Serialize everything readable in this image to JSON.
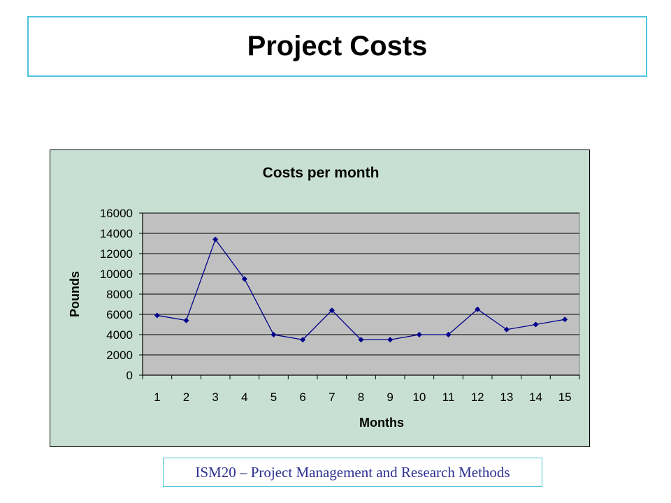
{
  "slide": {
    "title": "Project Costs",
    "footer": "ISM20 – Project Management and Research Methods"
  },
  "colors": {
    "title_border": "#4cc3d9",
    "chart_background": "#c8e0d4",
    "plot_background": "#c0c0c0",
    "series_color": "#00008b",
    "footer_text": "#2e3192"
  },
  "chart_data": {
    "type": "line",
    "title": "Costs per month",
    "xlabel": "Months",
    "ylabel": "Pounds",
    "categories": [
      "1",
      "2",
      "3",
      "4",
      "5",
      "6",
      "7",
      "8",
      "9",
      "10",
      "11",
      "12",
      "13",
      "14",
      "15"
    ],
    "series": [
      {
        "values": [
          5900,
          5400,
          13400,
          9500,
          4000,
          3500,
          6400,
          3500,
          3500,
          4000,
          4000,
          6500,
          4500,
          5000,
          5500
        ]
      }
    ],
    "ylim": [
      0,
      16000
    ],
    "yticks": [
      0,
      2000,
      4000,
      6000,
      8000,
      10000,
      12000,
      14000,
      16000
    ],
    "grid": true,
    "legend": "none",
    "marker": "diamond"
  }
}
